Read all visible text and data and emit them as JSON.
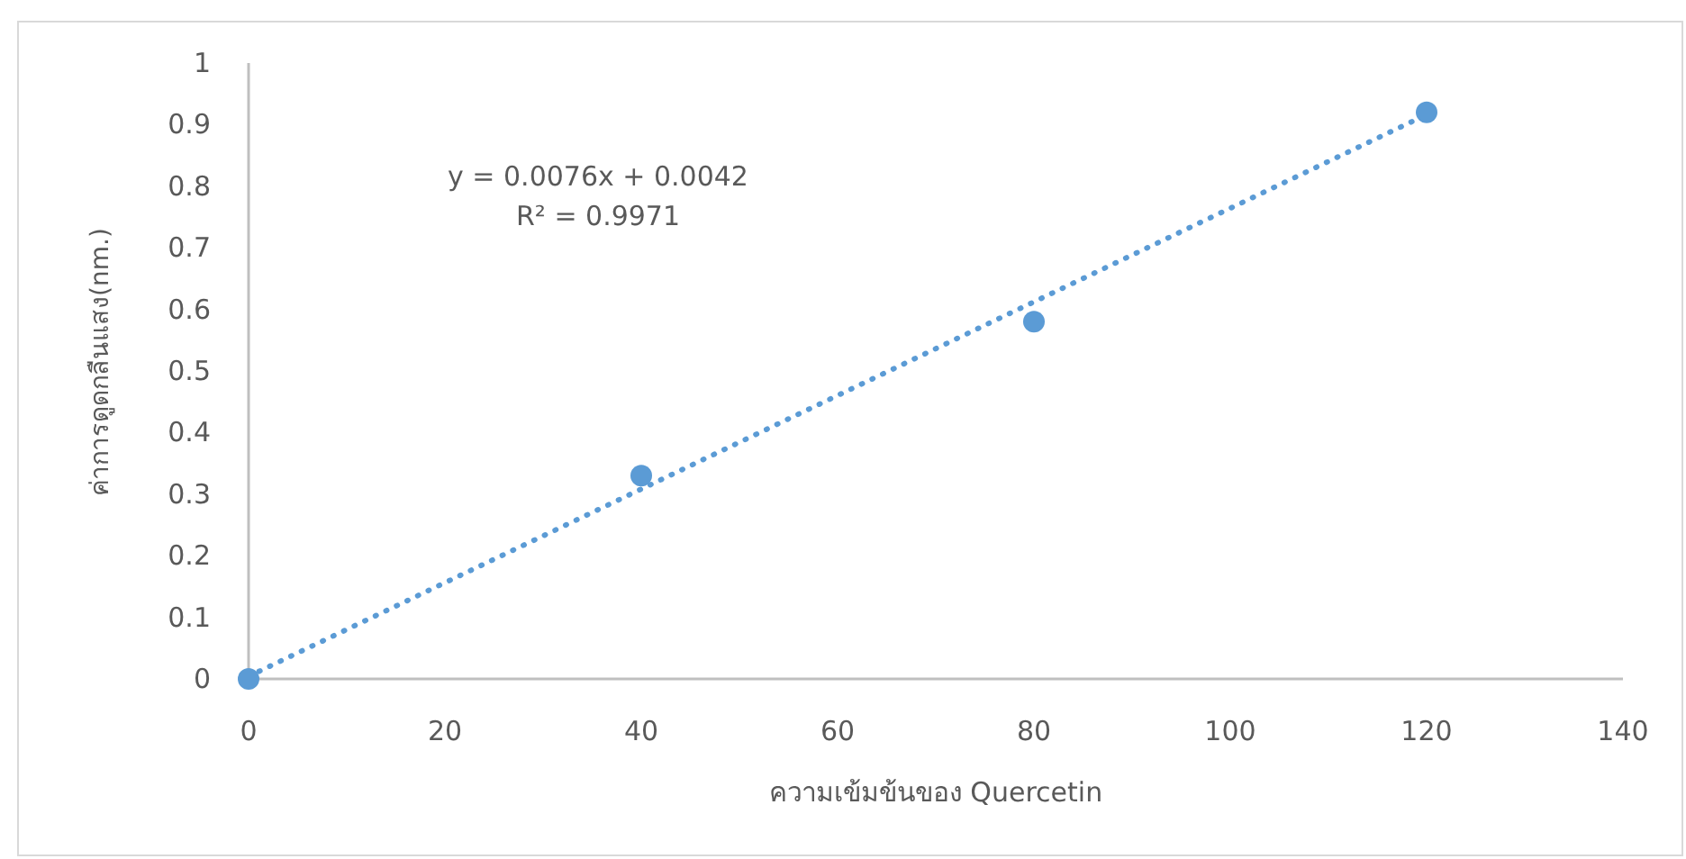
{
  "chart_data": {
    "type": "scatter",
    "xlabel": "ความเข้มข้นของ Quercetin",
    "ylabel": "ค่าการดูดกลืนแสง(nm.)",
    "annotations": [
      "y = 0.0076x + 0.0042",
      "R² = 0.9971"
    ],
    "xlim": [
      0,
      140
    ],
    "ylim": [
      0,
      1
    ],
    "xticks": [
      0,
      20,
      40,
      60,
      80,
      100,
      120,
      140
    ],
    "yticks": [
      0,
      0.1,
      0.2,
      0.3,
      0.4,
      0.5,
      0.6,
      0.7,
      0.8,
      0.9,
      1
    ],
    "series": [
      {
        "color": "#5b9bd5",
        "x": [
          0,
          40,
          80,
          120
        ],
        "values": [
          0,
          0.33,
          0.58,
          0.92
        ],
        "marker": "circle"
      },
      {
        "type": "line",
        "color": "#5b9bd5",
        "x": [
          0,
          120
        ],
        "values": [
          0.0042,
          0.9162
        ],
        "line_style": "dotted",
        "marker": "none"
      }
    ]
  }
}
